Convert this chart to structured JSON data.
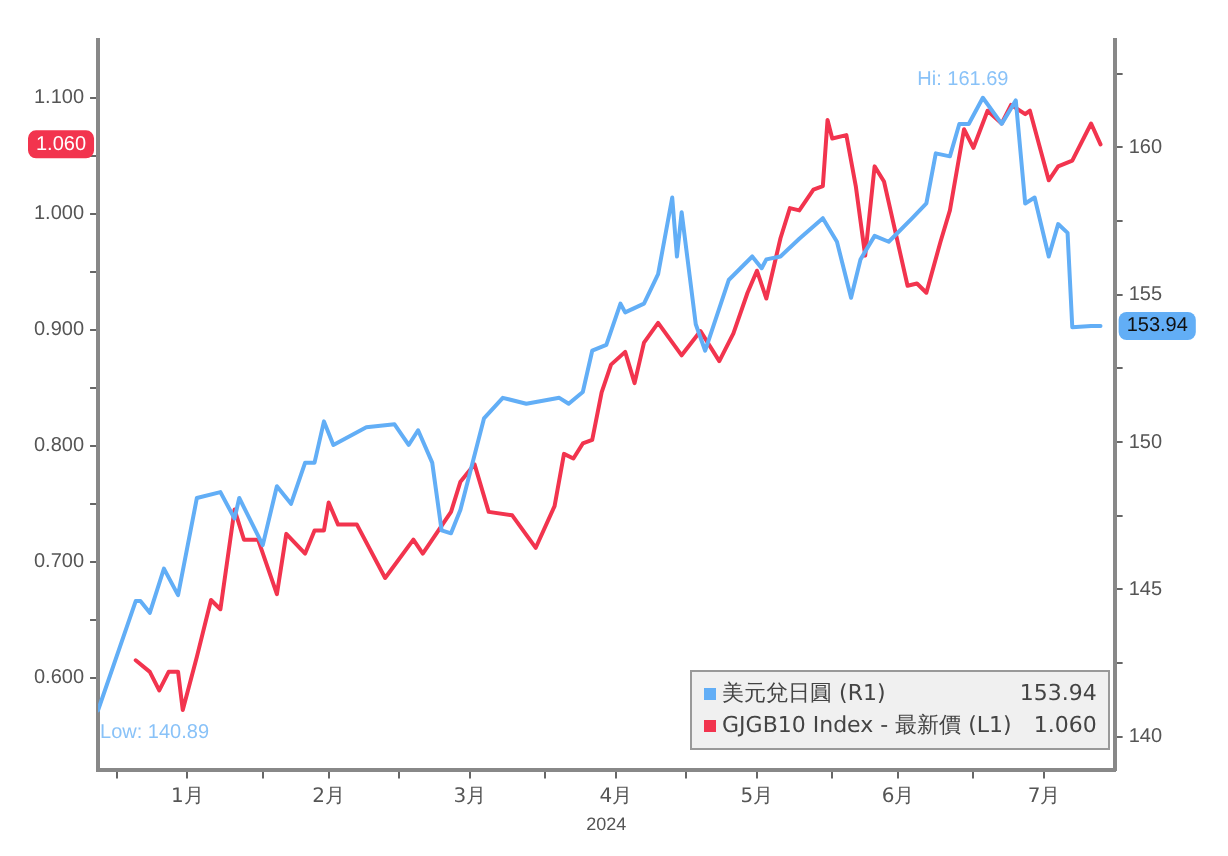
{
  "chart_data": {
    "type": "line",
    "xlabel": "2024",
    "xlim": [
      "2023-12-28",
      "2024-07-31"
    ],
    "xticks": [
      {
        "value": "2024-01-01",
        "label": null
      },
      {
        "value": "2024-01-16",
        "label": "1月"
      },
      {
        "value": "2024-02-01",
        "label": null
      },
      {
        "value": "2024-02-15",
        "label": "2月"
      },
      {
        "value": "2024-03-01",
        "label": null
      },
      {
        "value": "2024-03-16",
        "label": "3月"
      },
      {
        "value": "2024-04-01",
        "label": null
      },
      {
        "value": "2024-04-16",
        "label": "4月"
      },
      {
        "value": "2024-05-01",
        "label": null
      },
      {
        "value": "2024-05-16",
        "label": "5月"
      },
      {
        "value": "2024-06-01",
        "label": null
      },
      {
        "value": "2024-06-15",
        "label": "6月"
      },
      {
        "value": "2024-07-01",
        "label": null
      },
      {
        "value": "2024-07-16",
        "label": "7月"
      }
    ],
    "ylim": [
      0.52,
      1.15
    ],
    "yticks": [
      {
        "value": 0.6,
        "label": "0.600"
      },
      {
        "value": 0.65,
        "label": null
      },
      {
        "value": 0.7,
        "label": "0.700"
      },
      {
        "value": 0.75,
        "label": null
      },
      {
        "value": 0.8,
        "label": "0.800"
      },
      {
        "value": 0.85,
        "label": null
      },
      {
        "value": 0.9,
        "label": "0.900"
      },
      {
        "value": 0.95,
        "label": null
      },
      {
        "value": 1.0,
        "label": "1.000"
      },
      {
        "value": 1.05,
        "label": null
      },
      {
        "value": 1.1,
        "label": "1.100"
      }
    ],
    "y2lim": [
      138.85,
      163.65
    ],
    "y2ticks": [
      140,
      {
        "value": 142.5,
        "label": null
      },
      145,
      {
        "value": 147.5,
        "label": null
      },
      150,
      {
        "value": 152.5,
        "label": null
      },
      155,
      {
        "value": 157.5,
        "label": null
      },
      160,
      {
        "value": 162.5,
        "label": null
      }
    ],
    "grid": false,
    "legend": "bottom right",
    "marker": "none",
    "line_style": "solid",
    "series": [
      {
        "name": "美元兌日圓 (R1)",
        "color": "#62aef6",
        "axis": "y2",
        "x": [
          "2023-12-28",
          "2024-01-05",
          "2024-01-06",
          "2024-01-08",
          "2024-01-11",
          "2024-01-14",
          "2024-01-18",
          "2024-01-23",
          "2024-01-26",
          "2024-01-27",
          "2024-02-01",
          "2024-02-04",
          "2024-02-07",
          "2024-02-10",
          "2024-02-12",
          "2024-02-14",
          "2024-02-16",
          "2024-02-23",
          "2024-02-29",
          "2024-03-03",
          "2024-03-05",
          "2024-03-08",
          "2024-03-10",
          "2024-03-12",
          "2024-03-14",
          "2024-03-19",
          "2024-03-23",
          "2024-03-28",
          "2024-04-04",
          "2024-04-06",
          "2024-04-09",
          "2024-04-11",
          "2024-04-14",
          "2024-04-17",
          "2024-04-18",
          "2024-04-22",
          "2024-04-25",
          "2024-04-28",
          "2024-04-29",
          "2024-04-30",
          "2024-05-03",
          "2024-05-05",
          "2024-05-10",
          "2024-05-15",
          "2024-05-17",
          "2024-05-18",
          "2024-05-21",
          "2024-05-25",
          "2024-05-30",
          "2024-06-02",
          "2024-06-05",
          "2024-06-07",
          "2024-06-10",
          "2024-06-13",
          "2024-06-18",
          "2024-06-21",
          "2024-06-23",
          "2024-06-26",
          "2024-06-28",
          "2024-06-30",
          "2024-07-03",
          "2024-07-07",
          "2024-07-10",
          "2024-07-12",
          "2024-07-14",
          "2024-07-17",
          "2024-07-19",
          "2024-07-21",
          "2024-07-22",
          "2024-07-26",
          "2024-07-28"
        ],
        "values": [
          140.89,
          144.6,
          144.6,
          144.2,
          145.7,
          144.8,
          148.1,
          148.3,
          147.4,
          148.1,
          146.5,
          148.5,
          147.9,
          149.3,
          149.3,
          150.7,
          149.9,
          150.5,
          150.6,
          149.9,
          150.4,
          149.3,
          147.0,
          146.9,
          147.7,
          150.8,
          151.5,
          151.3,
          151.5,
          151.3,
          151.7,
          153.1,
          153.3,
          154.7,
          154.4,
          154.7,
          155.7,
          158.3,
          156.3,
          157.8,
          154.0,
          153.1,
          155.5,
          156.3,
          155.9,
          156.2,
          156.3,
          156.9,
          157.6,
          156.8,
          154.9,
          156.2,
          157.0,
          156.8,
          157.6,
          158.1,
          159.8,
          159.7,
          160.8,
          160.8,
          161.69,
          160.8,
          161.6,
          158.1,
          158.3,
          156.3,
          157.4,
          157.1,
          153.9,
          153.94,
          153.94
        ]
      },
      {
        "name": "GJGB10 Index - 最新價 (L1)",
        "color": "#f2344e",
        "x": [
          "2024-01-05",
          "2024-01-08",
          "2024-01-10",
          "2024-01-12",
          "2024-01-14",
          "2024-01-15",
          "2024-01-18",
          "2024-01-21",
          "2024-01-23",
          "2024-01-26",
          "2024-01-28",
          "2024-01-31",
          "2024-02-04",
          "2024-02-06",
          "2024-02-10",
          "2024-02-12",
          "2024-02-14",
          "2024-02-15",
          "2024-02-17",
          "2024-02-21",
          "2024-02-27",
          "2024-03-04",
          "2024-03-06",
          "2024-03-12",
          "2024-03-14",
          "2024-03-17",
          "2024-03-20",
          "2024-03-25",
          "2024-03-30",
          "2024-04-03",
          "2024-04-05",
          "2024-04-07",
          "2024-04-09",
          "2024-04-11",
          "2024-04-13",
          "2024-04-15",
          "2024-04-18",
          "2024-04-20",
          "2024-04-22",
          "2024-04-25",
          "2024-04-30",
          "2024-05-04",
          "2024-05-08",
          "2024-05-11",
          "2024-05-14",
          "2024-05-16",
          "2024-05-18",
          "2024-05-21",
          "2024-05-23",
          "2024-05-25",
          "2024-05-28",
          "2024-05-30",
          "2024-05-31",
          "2024-06-01",
          "2024-06-04",
          "2024-06-06",
          "2024-06-08",
          "2024-06-10",
          "2024-06-12",
          "2024-06-17",
          "2024-06-19",
          "2024-06-21",
          "2024-06-24",
          "2024-06-26",
          "2024-06-29",
          "2024-07-01",
          "2024-07-04",
          "2024-07-07",
          "2024-07-09",
          "2024-07-12",
          "2024-07-13",
          "2024-07-17",
          "2024-07-19",
          "2024-07-22",
          "2024-07-26",
          "2024-07-28"
        ],
        "values": [
          0.615,
          0.605,
          0.589,
          0.605,
          0.605,
          0.572,
          0.618,
          0.667,
          0.659,
          0.745,
          0.719,
          0.719,
          0.672,
          0.724,
          0.707,
          0.727,
          0.727,
          0.751,
          0.732,
          0.732,
          0.686,
          0.719,
          0.707,
          0.743,
          0.769,
          0.784,
          0.743,
          0.74,
          0.712,
          0.748,
          0.793,
          0.789,
          0.802,
          0.805,
          0.846,
          0.87,
          0.881,
          0.854,
          0.889,
          0.906,
          0.878,
          0.899,
          0.873,
          0.897,
          0.932,
          0.951,
          0.927,
          0.979,
          1.005,
          1.003,
          1.021,
          1.024,
          1.081,
          1.065,
          1.068,
          1.024,
          0.964,
          1.041,
          1.028,
          0.938,
          0.94,
          0.932,
          0.976,
          1.003,
          1.073,
          1.057,
          1.089,
          1.078,
          1.094,
          1.086,
          1.089,
          1.029,
          1.041,
          1.046,
          1.078,
          1.06
        ]
      }
    ],
    "annotations": [
      "153.94",
      "1.060",
      "Hi: 161.69",
      "Low: 140.89"
    ]
  }
}
